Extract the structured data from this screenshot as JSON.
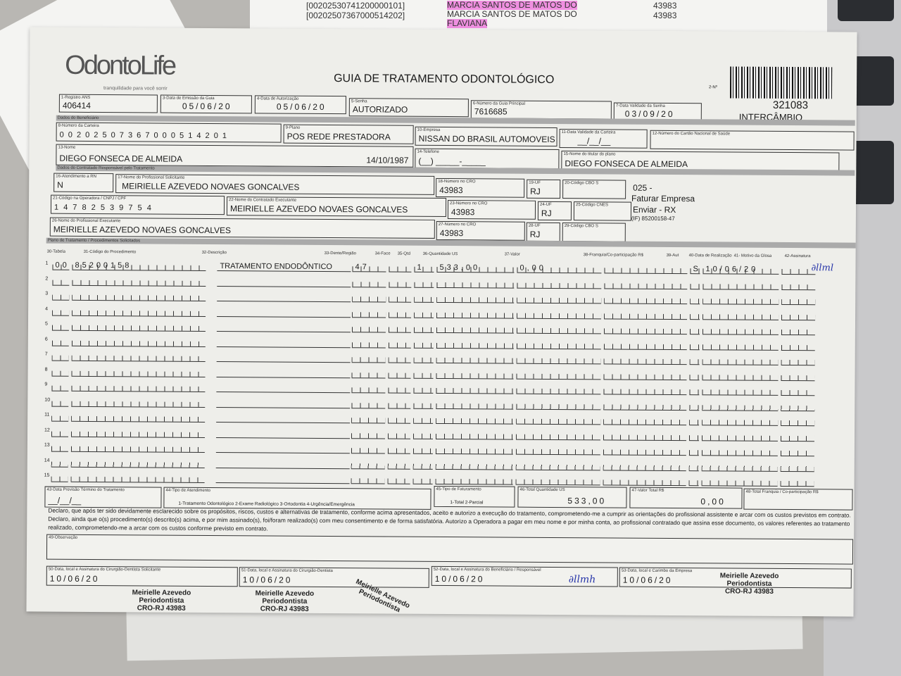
{
  "background": {
    "list_ids": [
      "[00202530741200000101]",
      "[00202507367000514202]"
    ],
    "list_names": [
      "MARCIA SANTOS DE MATOS DO",
      "MARCIA SANTOS DE MATOS DO",
      "FLAVIANA"
    ],
    "list_cro": [
      "43983",
      "43983"
    ]
  },
  "header": {
    "logo": "OdontoLife",
    "tagline": "tranquilidade para você sorrir",
    "title": "GUIA DE TRATAMENTO ODONTOLÓGICO",
    "guia_no_label": "2-Nº",
    "number": "321083",
    "type": "INTERCÂMBIO"
  },
  "fields": {
    "f1": {
      "label": "1-Registro ANS",
      "value": "406414"
    },
    "f3": {
      "label": "3-Data de Emissão da Guia",
      "value": "05/06/20"
    },
    "f4": {
      "label": "4-Data de Autorização",
      "value": "05/06/20"
    },
    "f5": {
      "label": "5-Senha",
      "value": "AUTORIZADO"
    },
    "f6": {
      "label": "6-Número da Guia Principal",
      "value": "7616685"
    },
    "f7": {
      "label": "7-Data Validade da Senha",
      "value": "03/09/20"
    },
    "f8": {
      "label": "8-Número da Carteira",
      "value": "0 0 2 0 2 5 0 7 3 6 7 0 0 0 5 1 4 2 0 1"
    },
    "f9": {
      "label": "9-Plano",
      "value": "POS REDE PRESTADORA"
    },
    "f10": {
      "label": "10-Empresa",
      "value": "NISSAN DO BRASIL AUTOMOVEIS"
    },
    "f11": {
      "label": "11-Data Validade da Carteira",
      "value": "__/__/__"
    },
    "f12": {
      "label": "12-Número do Cartão Nacional de Saúde",
      "value": ""
    },
    "f13": {
      "label": "13-Nome",
      "value": "DIEGO FONSECA DE ALMEIDA",
      "birth": "14/10/1987"
    },
    "f14": {
      "label": "14-Telefone",
      "value": "(__) _____-_____"
    },
    "f15": {
      "label": "15-Nome do titular do plano",
      "value": "DIEGO FONSECA DE ALMEIDA"
    },
    "f16": {
      "label": "16-Atendimento a RN",
      "value": "N"
    },
    "f17": {
      "label": "17-Nome do Profissional Solicitante",
      "value": "MEIRIELLE AZEVEDO NOVAES GONCALVES"
    },
    "f18": {
      "label": "18-Número no CRO",
      "value": "43983"
    },
    "f19": {
      "label": "19-UF",
      "value": "RJ"
    },
    "f20": {
      "label": "20-Código CBO S",
      "value": ""
    },
    "f21": {
      "label": "21-Código na Operadora / CNPJ / CPF",
      "value": "1 4 7 8 2 5 3 9 7 5 4"
    },
    "f22": {
      "label": "22-Nome do Contratado Executante",
      "value": "MEIRIELLE AZEVEDO NOVAES GONCALVES"
    },
    "f23": {
      "label": "23-Número no CRO",
      "value": "43983"
    },
    "f24": {
      "label": "24-UF",
      "value": "RJ"
    },
    "f25": {
      "label": "25-Código CNES",
      "value": ""
    },
    "f26": {
      "label": "26-Nome do Profissional Executante",
      "value": "MEIRIELLE AZEVEDO NOVAES GONCALVES"
    },
    "f27": {
      "label": "27-Número no CRO",
      "value": "43983"
    },
    "f28": {
      "label": "28-UF",
      "value": "RJ"
    },
    "f29": {
      "label": "29-Código CBO S",
      "value": ""
    }
  },
  "sections": {
    "beneficiario": "Dados do Beneficiário",
    "contratado": "Dados do Contratado Responsável pelo Tratamento",
    "plano": "Plano de Tratamento / Procedimentos Solicitados"
  },
  "notes": {
    "n1": "025 -",
    "n2": "Faturar Empresa",
    "n3": "Enviar - RX",
    "n4": "(IF) 85200158-47"
  },
  "procedures": {
    "headers": [
      "30-Tabela",
      "31-Código do Procedimento",
      "32-Descrição",
      "33-Dente/Região",
      "34-Face",
      "35-Qtd",
      "36-Quantidade US",
      "37-Valor",
      "38-Franquia/Co-participação R$",
      "39-Aut",
      "40-Data de Realização",
      "41- Motivo da Glosa",
      "42-Assinatura"
    ],
    "rows": [
      {
        "n": "1",
        "tabela": "00",
        "codigo": "85200158",
        "descricao": "TRATAMENTO ENDODÔNTICO",
        "dente": "47",
        "face": "",
        "qtd": "1",
        "us": "533,00",
        "valor": "0,00",
        "franquia": "",
        "aut": "S",
        "data": "10/06/20",
        "glosa": ""
      },
      {
        "n": "2"
      },
      {
        "n": "3"
      },
      {
        "n": "4"
      },
      {
        "n": "5"
      },
      {
        "n": "6"
      },
      {
        "n": "7"
      },
      {
        "n": "8"
      },
      {
        "n": "9"
      },
      {
        "n": "10"
      },
      {
        "n": "11"
      },
      {
        "n": "12"
      },
      {
        "n": "13"
      },
      {
        "n": "14"
      },
      {
        "n": "15"
      }
    ]
  },
  "footer": {
    "f43": {
      "label": "43-Data Previsão Término do Tratamento",
      "value": "__/__/__"
    },
    "f44": {
      "label": "44-Tipo de Atendimento",
      "value": "1-Tratamento Odontológico  2-Exame Radiológico  3-Ortodontia  4-Urgência/Emergência"
    },
    "f45": {
      "label": "45-Tipo de Faturamento",
      "value": "1-Total  2-Parcial"
    },
    "f46": {
      "label": "46-Total Quantidade US",
      "value": "533,00"
    },
    "f47": {
      "label": "47-Valor Total R$",
      "value": "0,00"
    },
    "f48": {
      "label": "48-Total Franquia / Co-participação R$",
      "value": ""
    },
    "declaration": "Declaro, que após ter sido devidamente esclarecido sobre os propósitos, riscos, custos e alternativas de tratamento, conforme acima apresentados, aceito e autorizo a execução do tratamento, comprometendo-me a cumprir as orientações do profissional assistente e arcar com os custos previstos em contrato. Declaro, ainda que o(s) procedimento(s) descrito(s) acima, e por mim assinado(s), foi/foram realizado(s) com meu consentimento e de forma satisfatória. Autorizo a Operadora a pagar em meu nome e por minha conta, ao profissional contratado que assina esse documento, os valores referentes ao tratamento realizado, comprometendo-me a arcar com os custos conforme previsto em contrato.",
    "f49": {
      "label": "49-Observação",
      "value": ""
    },
    "f50": {
      "label": "50-Data, local e Assinatura do Cirurgião-Dentista Solicitante",
      "value": "10/06/20"
    },
    "f51": {
      "label": "51-Data, local e Assinatura do Cirurgião-Dentista",
      "value": "10/06/20"
    },
    "f52": {
      "label": "52-Data, local e Assinatura do Beneficiário / Responsável",
      "value": "10/06/20"
    },
    "f53": {
      "label": "53-Data, local e Carimbo da Empresa",
      "value": "10/06/20"
    },
    "stamp": {
      "name": "Meirielle Azevedo",
      "role": "Periodontista",
      "cro": "CRO-RJ 43983"
    }
  }
}
